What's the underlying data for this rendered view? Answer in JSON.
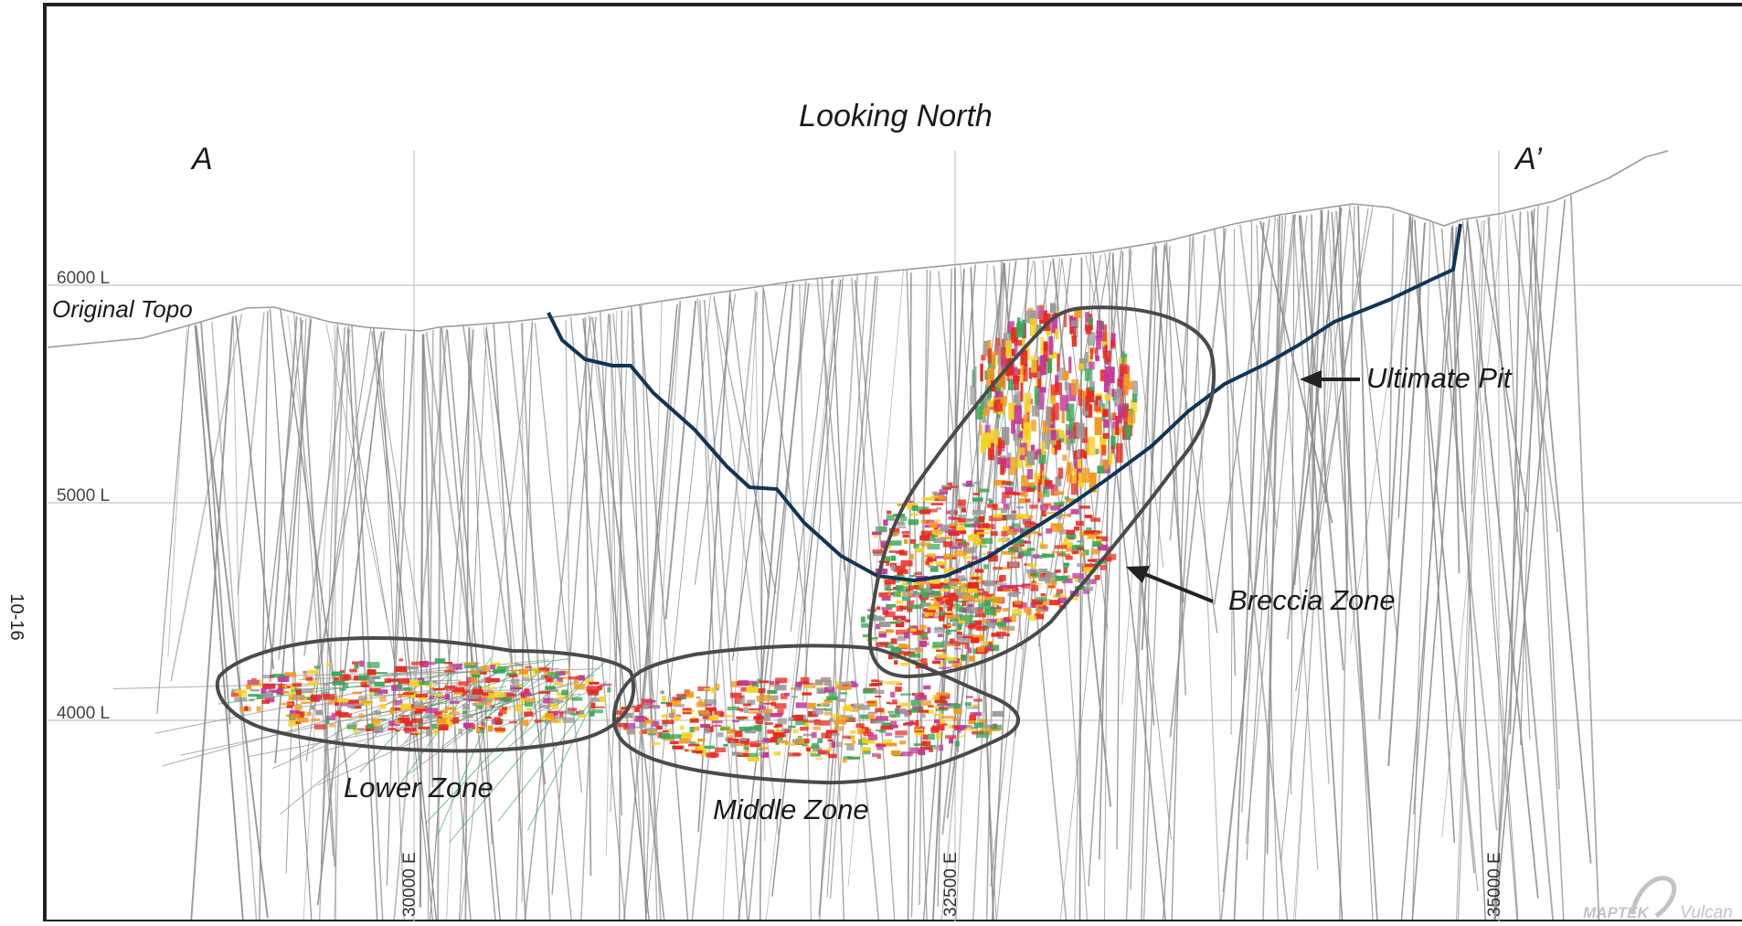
{
  "page_label": "10-16",
  "view_title": "Looking North",
  "section_start": "A",
  "section_end": "A’",
  "level_labels": [
    "6000 L",
    "5000 L",
    "4000 L"
  ],
  "easting_labels": [
    "30000 E",
    "32500 E",
    "35000 E"
  ],
  "annotations": {
    "original_topo": "Original Topo",
    "ultimate_pit": "Ultimate Pit",
    "breccia_zone": "Breccia Zone",
    "lower_zone": "Lower Zone",
    "middle_zone": "Middle Zone"
  },
  "logo": {
    "brand": "MAPTEK",
    "product": "Vulcan",
    "icon": "maptek-swoosh-icon"
  },
  "colors": {
    "frame": "#222222",
    "drillhole": "#8a8a8a",
    "pit_shell": "#0f3559",
    "zone_outline": "#4a4a4a",
    "grade_high": "#e8281e",
    "grade_mid": "#f29a1c",
    "grade_low": "#f6d21e",
    "grade_alt": "#c2389a",
    "grade_green": "#3aa858"
  }
}
